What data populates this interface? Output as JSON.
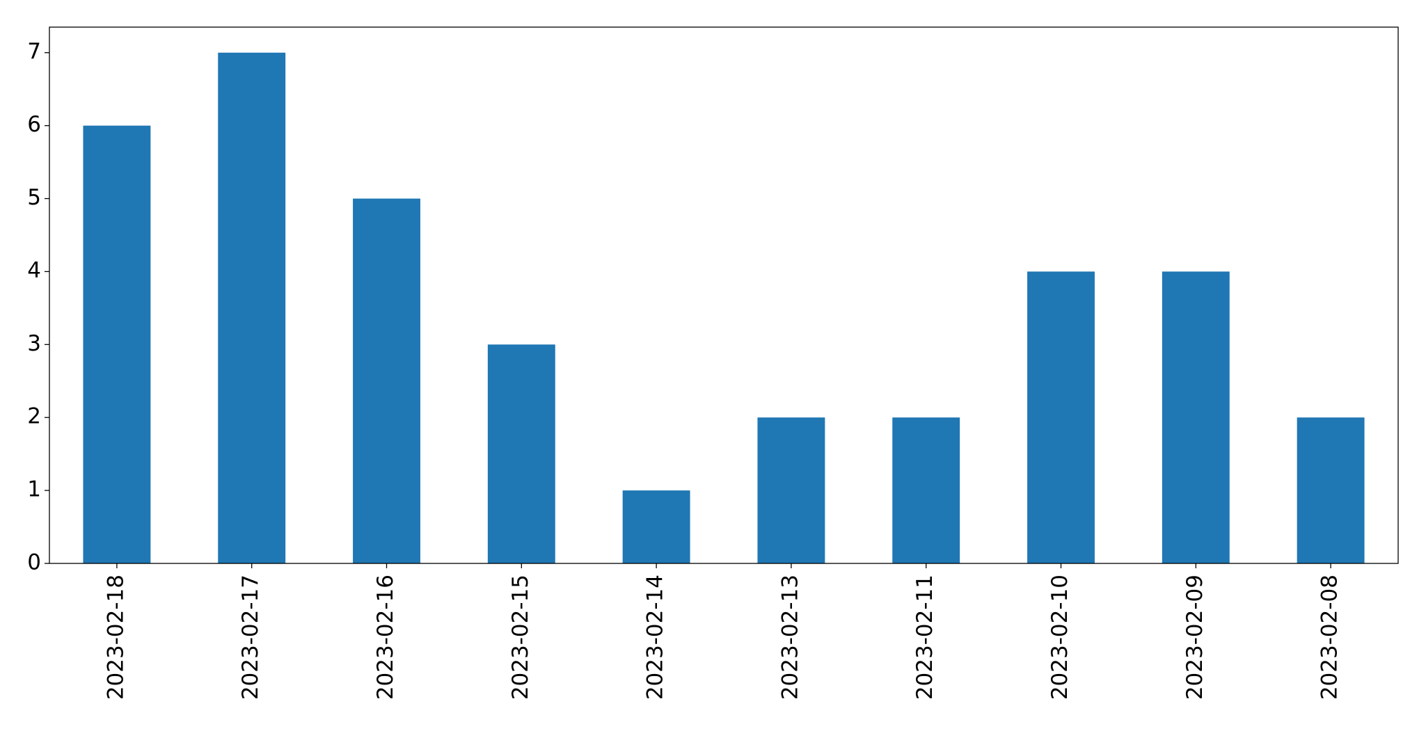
{
  "chart_data": {
    "type": "bar",
    "categories": [
      "2023-02-18",
      "2023-02-17",
      "2023-02-16",
      "2023-02-15",
      "2023-02-14",
      "2023-02-13",
      "2023-02-11",
      "2023-02-10",
      "2023-02-09",
      "2023-02-08"
    ],
    "values": [
      6,
      7,
      5,
      3,
      1,
      2,
      2,
      4,
      4,
      2
    ],
    "color": "#1f77b4",
    "ylim": [
      0,
      7.35
    ],
    "yticks": [
      0,
      1,
      2,
      3,
      4,
      5,
      6,
      7
    ],
    "grid": false
  }
}
